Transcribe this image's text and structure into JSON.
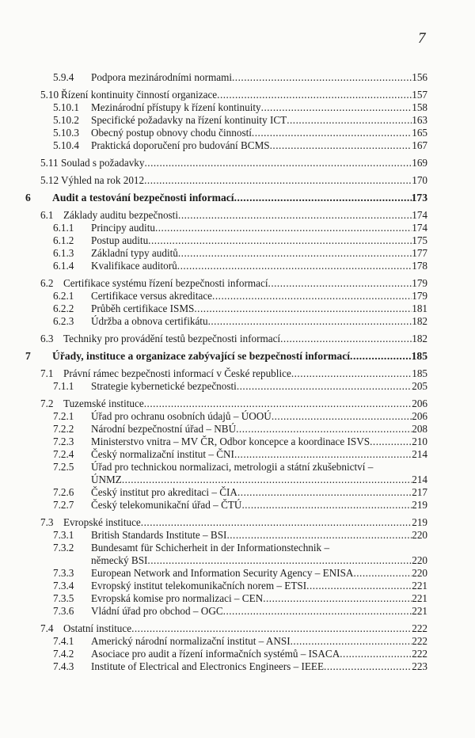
{
  "page_number": "7",
  "entries": [
    {
      "level": 3,
      "num": "5.9.4",
      "title": "Podpora mezinárodními normami",
      "page": "156"
    },
    {
      "level": 2,
      "num": "5.10",
      "title": "Řízení kontinuity činností organizace",
      "page": "157"
    },
    {
      "level": 3,
      "num": "5.10.1",
      "title": "Mezinárodní přístupy k řízení kontinuity",
      "page": "158"
    },
    {
      "level": 3,
      "num": "5.10.2",
      "title": "Specifické požadavky na řízení kontinuity ICT",
      "page": "163"
    },
    {
      "level": 3,
      "num": "5.10.3",
      "title": "Obecný postup obnovy chodu činností",
      "page": "165"
    },
    {
      "level": 3,
      "num": "5.10.4",
      "title": "Praktická doporučení pro budování BCMS",
      "page": "167"
    },
    {
      "level": 2,
      "num": "5.11",
      "title": "Soulad s požadavky",
      "page": "169"
    },
    {
      "level": 2,
      "num": "5.12",
      "title": "Výhled na rok 2012",
      "page": "170"
    },
    {
      "level": 1,
      "num": "6",
      "title": "Audit a testování bezpečnosti informací",
      "page": "173"
    },
    {
      "level": 2,
      "num": "6.1",
      "title": "Základy auditu bezpečnosti",
      "page": "174"
    },
    {
      "level": 3,
      "num": "6.1.1",
      "title": "Principy auditu",
      "page": "174"
    },
    {
      "level": 3,
      "num": "6.1.2",
      "title": "Postup auditu",
      "page": "175"
    },
    {
      "level": 3,
      "num": "6.1.3",
      "title": "Základní typy auditů",
      "page": "177"
    },
    {
      "level": 3,
      "num": "6.1.4",
      "title": "Kvalifikace auditorů",
      "page": "178"
    },
    {
      "level": 2,
      "num": "6.2",
      "title": "Certifikace systému řízení bezpečnosti informací",
      "page": "179"
    },
    {
      "level": 3,
      "num": "6.2.1",
      "title": "Certifikace versus akreditace",
      "page": "179"
    },
    {
      "level": 3,
      "num": "6.2.2",
      "title": "Průběh certifikace ISMS",
      "page": "181"
    },
    {
      "level": 3,
      "num": "6.2.3",
      "title": "Údržba a obnova certifikátu",
      "page": "182"
    },
    {
      "level": 2,
      "num": "6.3",
      "title": "Techniky pro provádění testů bezpečnosti informací",
      "page": "182"
    },
    {
      "level": 1,
      "num": "7",
      "title": "Úřady, instituce a organizace zabývající se bezpečností informací",
      "page": "185"
    },
    {
      "level": 2,
      "num": "7.1",
      "title": "Právní rámec bezpečnosti informací v České republice",
      "page": "185"
    },
    {
      "level": 3,
      "num": "7.1.1",
      "title": "Strategie kybernetické bezpečnosti",
      "page": "205"
    },
    {
      "level": 2,
      "num": "7.2",
      "title": "Tuzemské instituce",
      "page": "206"
    },
    {
      "level": 3,
      "num": "7.2.1",
      "title": "Úřad pro ochranu osobních údajů – ÚOOÚ",
      "page": "206"
    },
    {
      "level": 3,
      "num": "7.2.2",
      "title": "Národní bezpečnostní úřad – NBÚ",
      "page": "208"
    },
    {
      "level": 3,
      "num": "7.2.3",
      "title": "Ministerstvo vnitra – MV ČR, Odbor koncepce a koordinace ISVS",
      "page": "210"
    },
    {
      "level": 3,
      "num": "7.2.4",
      "title": "Český normalizační institut – ČNI",
      "page": "214"
    },
    {
      "level": 3,
      "num": "7.2.5",
      "title": "Úřad pro technickou normalizaci, metrologii a státní zkušebnictví –",
      "title_cont": "ÚNMZ",
      "page": "214"
    },
    {
      "level": 3,
      "num": "7.2.6",
      "title": "Český institut pro akreditaci – ČIA",
      "page": "217"
    },
    {
      "level": 3,
      "num": "7.2.7",
      "title": "Český telekomunikační úřad – ČTÚ",
      "page": "219"
    },
    {
      "level": 2,
      "num": "7.3",
      "title": "Evropské instituce",
      "page": "219"
    },
    {
      "level": 3,
      "num": "7.3.1",
      "title": "British Standards Institute – BSI",
      "page": "220"
    },
    {
      "level": 3,
      "num": "7.3.2",
      "title": "Bundesamt für Schicherheit in der Informationstechnik –",
      "title_cont": "německý BSI",
      "page": "220"
    },
    {
      "level": 3,
      "num": "7.3.3",
      "title": "European Network and Information Security Agency – ENISA",
      "page": "220"
    },
    {
      "level": 3,
      "num": "7.3.4",
      "title": "Evropský institut telekomunikačních norem – ETSI",
      "page": "221"
    },
    {
      "level": 3,
      "num": "7.3.5",
      "title": "Evropská komise pro normalizaci – CEN",
      "page": "221"
    },
    {
      "level": 3,
      "num": "7.3.6",
      "title": "Vládní úřad pro obchod – OGC",
      "page": "221"
    },
    {
      "level": 2,
      "num": "7.4",
      "title": "Ostatní instituce",
      "page": "222"
    },
    {
      "level": 3,
      "num": "7.4.1",
      "title": "Americký národní normalizační institut – ANSI",
      "page": "222"
    },
    {
      "level": 3,
      "num": "7.4.2",
      "title": "Asociace pro audit a řízení informačních systémů – ISACA",
      "page": "222"
    },
    {
      "level": 3,
      "num": "7.4.3",
      "title": "Institute of Electrical and Electronics Engineers – IEEE",
      "page": "223"
    }
  ]
}
